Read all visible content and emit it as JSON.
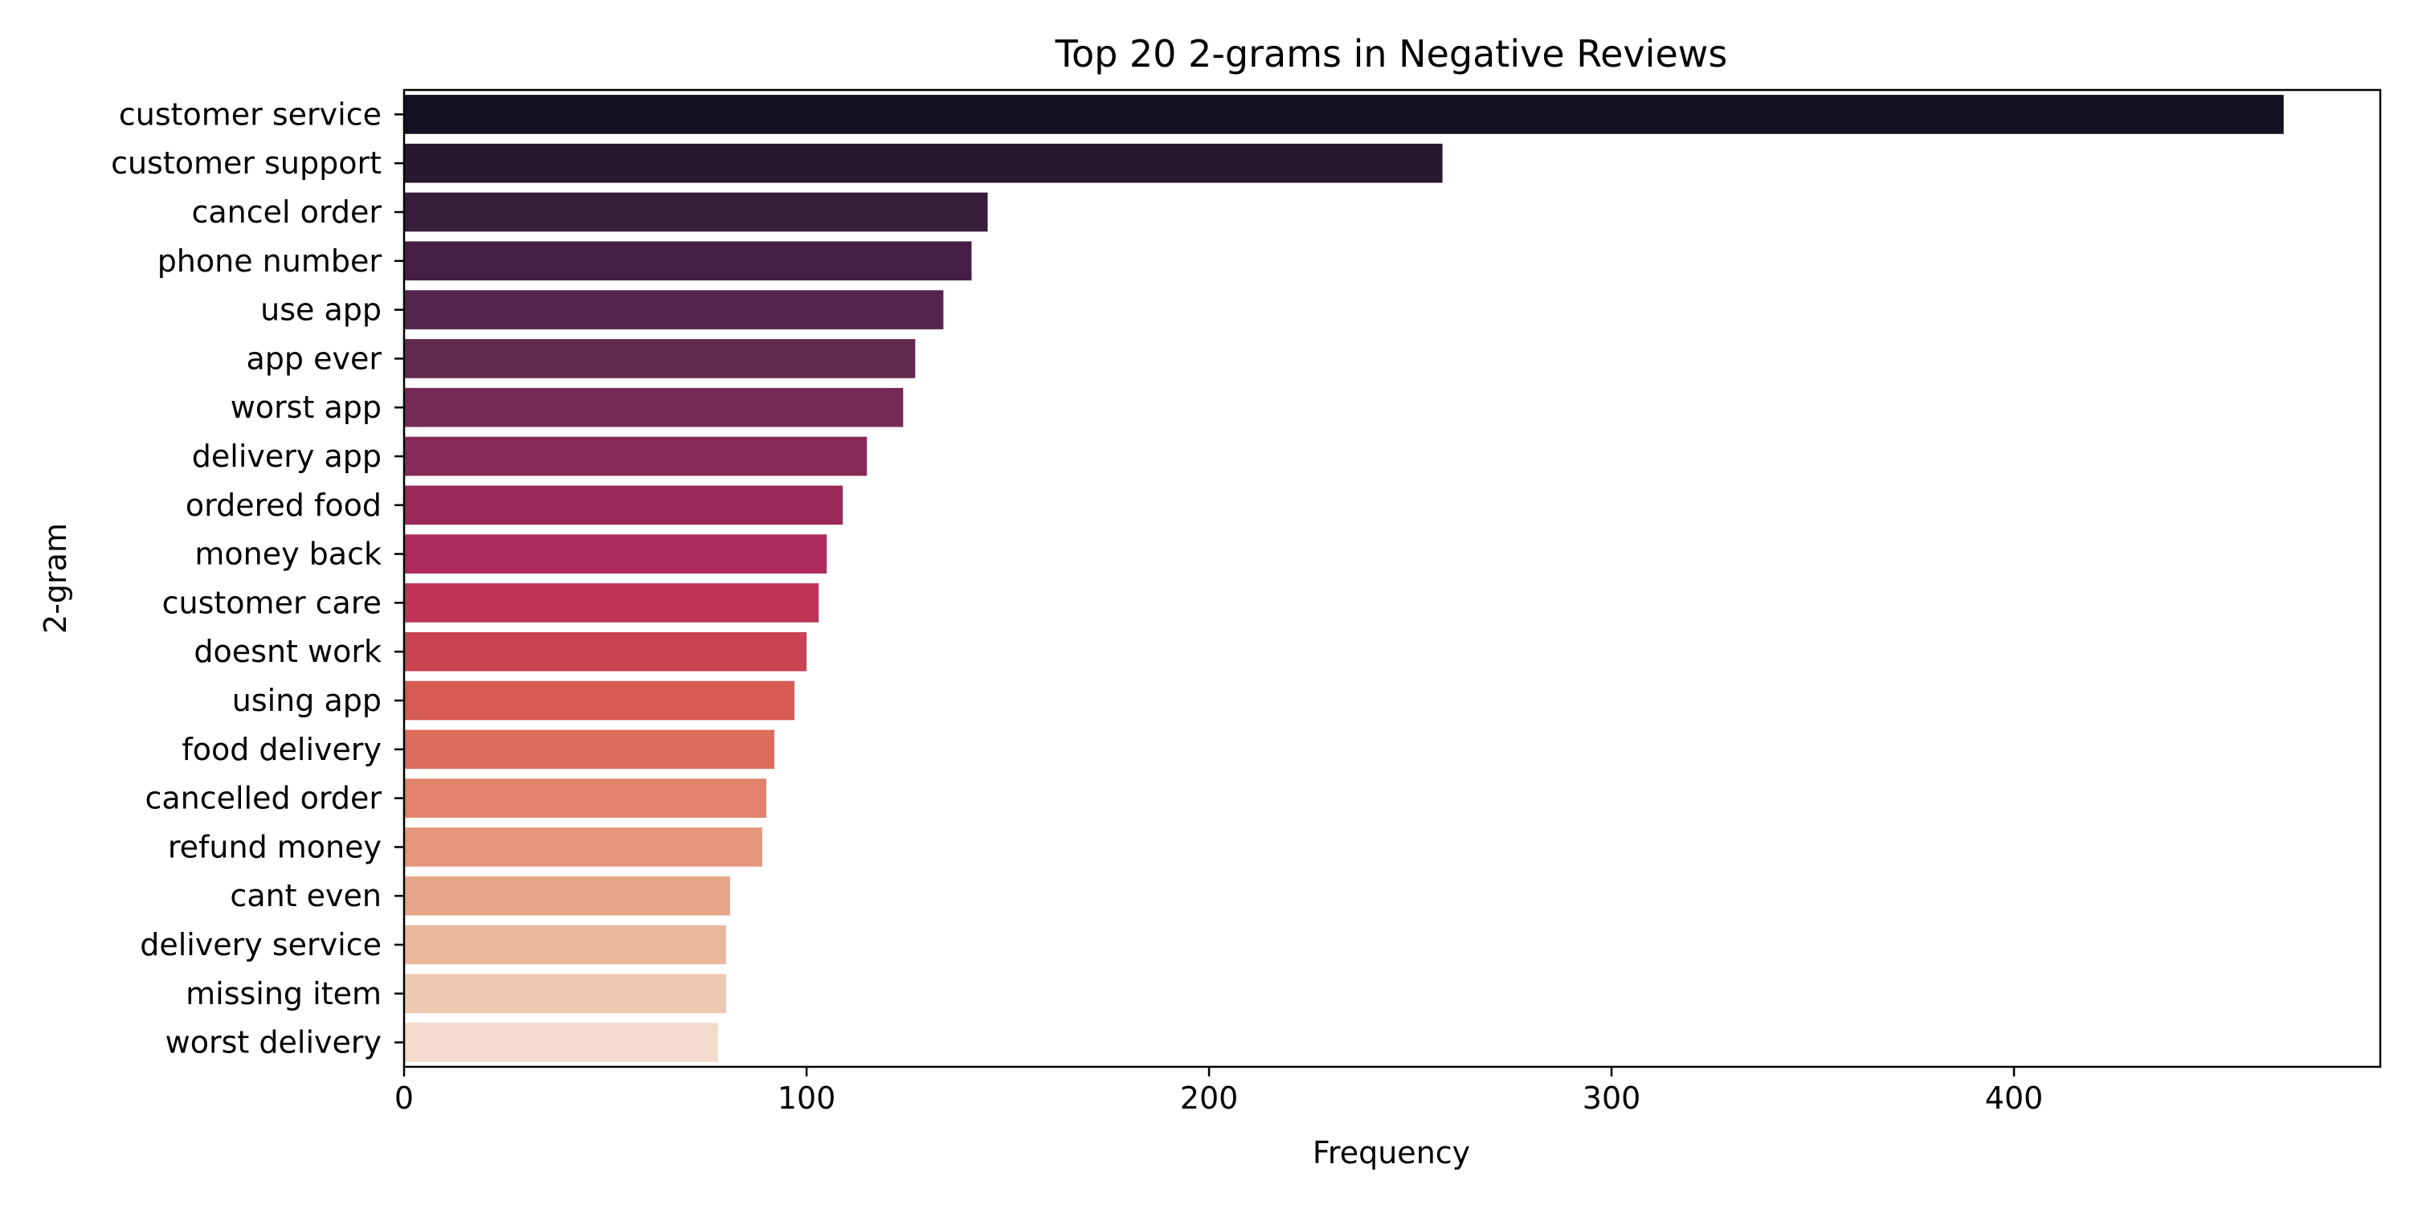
{
  "chart_data": {
    "type": "bar",
    "orientation": "horizontal",
    "title": "Top 20 2-grams in Negative Reviews",
    "xlabel": "Frequency",
    "ylabel": "2-gram",
    "xlim": [
      0,
      491
    ],
    "xticks": [
      0,
      100,
      200,
      300,
      400
    ],
    "grid": false,
    "palette": "rocket",
    "categories": [
      "customer service",
      "customer support",
      "cancel order",
      "phone number",
      "use app",
      "app ever",
      "worst app",
      "delivery app",
      "ordered food",
      "money back",
      "customer care",
      "doesnt work",
      "using app",
      "food delivery",
      "cancelled order",
      "refund money",
      "cant even",
      "delivery service",
      "missing item",
      "worst delivery"
    ],
    "values": [
      467,
      258,
      145,
      141,
      134,
      127,
      124,
      115,
      109,
      105,
      103,
      100,
      97,
      92,
      90,
      89,
      81,
      80,
      80,
      78
    ],
    "colors": [
      "#150f22",
      "#281830",
      "#381d3d",
      "#461f46",
      "#55264d",
      "#63294f",
      "#742b55",
      "#862b57",
      "#9b2a59",
      "#ad2b5b",
      "#bf3458",
      "#ca4453",
      "#d65c53",
      "#de6c5b",
      "#e2826a",
      "#e5957a",
      "#e7a889",
      "#eab99d",
      "#eec8b0",
      "#f3dacc"
    ]
  }
}
